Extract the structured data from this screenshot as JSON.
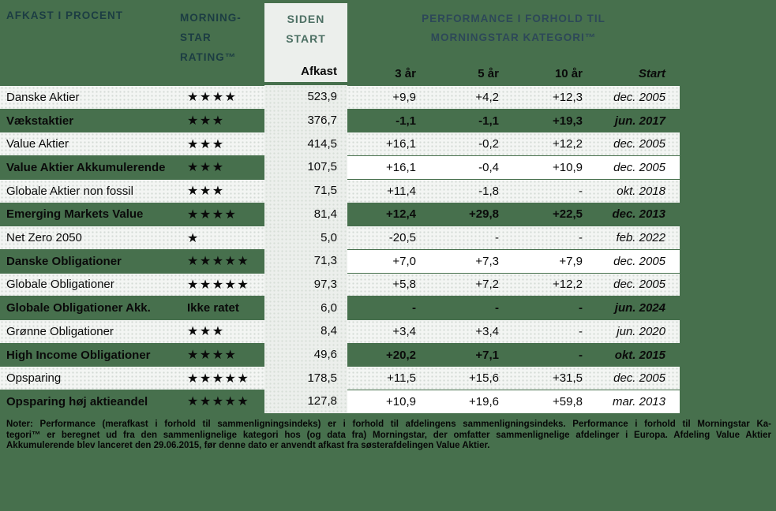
{
  "colors": {
    "page_green": "#47704D",
    "light_row": "#F3F5F3",
    "white_row": "#FFFFFF",
    "afkast_column": "#ECEFEC",
    "header_dark_teal": "#1C3D43",
    "perf_header_slate": "#2D4858",
    "siden_title_green": "#4C6F63",
    "text_black": "#0A0A0A"
  },
  "header": {
    "left_title": "AFKAST I PROCENT",
    "rating_title": "MORNING-\nSTAR\nRATING™",
    "siden_title": "SIDEN\nSTART",
    "afkast_label": "Afkast",
    "perf_title": "PERFORMANCE I FORHOLD TIL\nMORNINGSTAR KATEGORI™",
    "col_labels": {
      "y3": "3 år",
      "y5": "5 år",
      "y10": "10 år",
      "start": "Start"
    }
  },
  "rows": [
    {
      "name": "Danske Aktier",
      "rating": "★★★★",
      "afkast": "523,9",
      "y3": "+9,9",
      "y5": "+4,2",
      "y10": "+12,3",
      "start": "dec. 2005",
      "left_style": "light",
      "right_style": "light"
    },
    {
      "name": "Vækstaktier",
      "rating": "★★★",
      "afkast": "376,7",
      "y3": "-1,1",
      "y5": "-1,1",
      "y10": "+19,3",
      "start": "jun. 2017",
      "left_style": "green",
      "right_style": "green"
    },
    {
      "name": "Value Aktier",
      "rating": "★★★",
      "afkast": "414,5",
      "y3": "+16,1",
      "y5": "-0,2",
      "y10": "+12,2",
      "start": "dec. 2005",
      "left_style": "light",
      "right_style": "light"
    },
    {
      "name": "Value Aktier Akkumulerende",
      "rating": "★★★",
      "afkast": "107,5",
      "y3": "+16,1",
      "y5": "-0,4",
      "y10": "+10,9",
      "start": "dec. 2005",
      "left_style": "green",
      "right_style": "white"
    },
    {
      "name": "Globale Aktier non fossil",
      "rating": "★★★",
      "afkast": "71,5",
      "y3": "+11,4",
      "y5": "-1,8",
      "y10": "-",
      "start": "okt. 2018",
      "left_style": "light",
      "right_style": "light"
    },
    {
      "name": "Emerging Markets Value",
      "rating": "★★★★",
      "afkast": "81,4",
      "y3": "+12,4",
      "y5": "+29,8",
      "y10": "+22,5",
      "start": "dec. 2013",
      "left_style": "green",
      "right_style": "green"
    },
    {
      "name": "Net Zero 2050",
      "rating": "★",
      "afkast": "5,0",
      "y3": "-20,5",
      "y5": "-",
      "y10": "-",
      "start": "feb. 2022",
      "left_style": "light",
      "right_style": "light"
    },
    {
      "name": "Danske Obligationer",
      "rating": "★★★★★",
      "afkast": "71,3",
      "y3": "+7,0",
      "y5": "+7,3",
      "y10": "+7,9",
      "start": "dec. 2005",
      "left_style": "green",
      "right_style": "white"
    },
    {
      "name": "Globale Obligationer",
      "rating": "★★★★★",
      "afkast": "97,3",
      "y3": "+5,8",
      "y5": "+7,2",
      "y10": "+12,2",
      "start": "dec. 2005",
      "left_style": "light",
      "right_style": "light"
    },
    {
      "name": "Globale Obligationer Akk.",
      "rating": "Ikke ratet",
      "afkast": "6,0",
      "y3": "-",
      "y5": "-",
      "y10": "-",
      "start": "jun. 2024",
      "left_style": "green",
      "right_style": "green"
    },
    {
      "name": "Grønne Obligationer",
      "rating": "★★★",
      "afkast": "8,4",
      "y3": "+3,4",
      "y5": "+3,4",
      "y10": "-",
      "start": "jun. 2020",
      "left_style": "light",
      "right_style": "light"
    },
    {
      "name": "High Income Obligationer",
      "rating": "★★★★",
      "afkast": "49,6",
      "y3": "+20,2",
      "y5": "+7,1",
      "y10": "-",
      "start": "okt. 2015",
      "left_style": "green",
      "right_style": "green"
    },
    {
      "name": "Opsparing",
      "rating": "★★★★★",
      "afkast": "178,5",
      "y3": "+11,5",
      "y5": "+15,6",
      "y10": "+31,5",
      "start": "dec. 2005",
      "left_style": "light",
      "right_style": "light"
    },
    {
      "name": "Opsparing høj aktieandel",
      "rating": "★★★★★",
      "afkast": "127,8",
      "y3": "+10,9",
      "y5": "+19,6",
      "y10": "+59,8",
      "start": "mar. 2013",
      "left_style": "green",
      "right_style": "white"
    }
  ],
  "footnote": {
    "lines": [
      "Noter: Performance (merafkast i forhold til sammenligningsindeks) er i forhold til afdelingens sammenligningsindeks. Performance i forhold til Morningstar Ka-",
      "tegori™ er beregnet ud fra den sammenlignelige kategori hos (og data fra) Morningstar, der omfatter sammenlignelige afdelinger i Europa. Afdeling Value Aktier",
      "Akkumulerende blev lanceret den 29.06.2015, før denne dato er anvendt afkast fra søsterafdelingen Value Aktier."
    ]
  }
}
